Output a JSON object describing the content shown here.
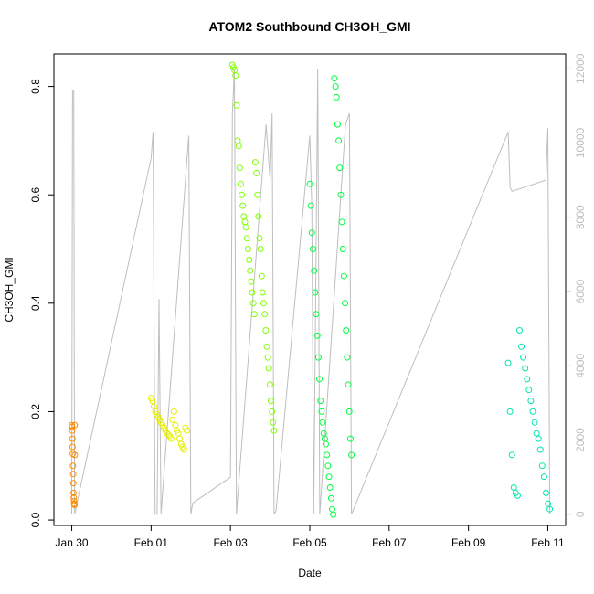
{
  "chart_data": {
    "type": "scatter",
    "title": "ATOM2 Southbound CH3OH_GMI",
    "xlabel": "Date",
    "ylabel": "CH3OH_GMI",
    "x_unit": "days since 2017-01-27",
    "xlim": [
      2.55,
      15.45
    ],
    "ylim": [
      -0.01,
      0.86
    ],
    "y2lim": [
      -300,
      12400
    ],
    "y2_color": "#bebebe",
    "x_ticks": [
      {
        "x": 3,
        "label": "Jan 30"
      },
      {
        "x": 5,
        "label": "Feb 01"
      },
      {
        "x": 7,
        "label": "Feb 03"
      },
      {
        "x": 9,
        "label": "Feb 05"
      },
      {
        "x": 11,
        "label": "Feb 07"
      },
      {
        "x": 13,
        "label": "Feb 09"
      },
      {
        "x": 15,
        "label": "Feb 11"
      }
    ],
    "y_ticks": [
      0.0,
      0.2,
      0.4,
      0.6,
      0.8
    ],
    "y_tick_labels": [
      "0.0",
      "0.2",
      "0.4",
      "0.6",
      "0.8"
    ],
    "y2_ticks": [
      0,
      2000,
      4000,
      6000,
      8000,
      10000,
      12000
    ],
    "y2_tick_labels": [
      "0",
      "2000",
      "4000",
      "6000",
      "8000",
      "10000",
      "12000"
    ],
    "grid": false,
    "legend": "none",
    "series": [
      {
        "color": "#ff8c00",
        "x_range": [
          3.0,
          3.08
        ],
        "values": [
          0.175,
          0.172,
          0.165,
          0.15,
          0.135,
          0.122,
          0.1,
          0.085,
          0.068,
          0.05,
          0.042,
          0.035,
          0.03,
          0.03,
          0.028,
          0.175,
          0.12
        ]
      },
      {
        "color": "#e6f000",
        "x_range": [
          5.0,
          5.9
        ],
        "values": [
          0.225,
          0.22,
          0.21,
          0.2,
          0.195,
          0.19,
          0.185,
          0.18,
          0.175,
          0.17,
          0.165,
          0.16,
          0.158,
          0.155,
          0.15,
          0.185,
          0.2,
          0.175,
          0.165,
          0.16,
          0.15,
          0.14,
          0.135,
          0.13,
          0.17,
          0.165
        ]
      },
      {
        "color": "#80ff00",
        "x_range": [
          7.05,
          8.1
        ],
        "values": [
          0.84,
          0.835,
          0.83,
          0.82,
          0.765,
          0.7,
          0.69,
          0.65,
          0.62,
          0.6,
          0.58,
          0.56,
          0.55,
          0.54,
          0.52,
          0.5,
          0.48,
          0.46,
          0.44,
          0.42,
          0.4,
          0.38,
          0.66,
          0.64,
          0.6,
          0.56,
          0.52,
          0.5,
          0.45,
          0.42,
          0.4,
          0.38,
          0.35,
          0.32,
          0.3,
          0.28,
          0.25,
          0.22,
          0.2,
          0.18,
          0.165
        ]
      },
      {
        "color": "#00ff40",
        "x_range": [
          9.0,
          10.05
        ],
        "values": [
          0.62,
          0.58,
          0.53,
          0.5,
          0.46,
          0.42,
          0.38,
          0.34,
          0.3,
          0.26,
          0.22,
          0.2,
          0.18,
          0.16,
          0.15,
          0.14,
          0.12,
          0.1,
          0.08,
          0.06,
          0.04,
          0.02,
          0.01,
          0.815,
          0.8,
          0.78,
          0.73,
          0.7,
          0.65,
          0.6,
          0.55,
          0.5,
          0.45,
          0.4,
          0.35,
          0.3,
          0.25,
          0.2,
          0.15,
          0.12
        ]
      },
      {
        "color": "#00e6b0",
        "x_range": [
          14.0,
          15.05
        ],
        "values": [
          0.29,
          0.2,
          0.12,
          0.06,
          0.05,
          0.045,
          0.35,
          0.32,
          0.3,
          0.28,
          0.26,
          0.24,
          0.22,
          0.2,
          0.18,
          0.16,
          0.15,
          0.13,
          0.1,
          0.08,
          0.05,
          0.03,
          0.02
        ]
      }
    ],
    "secondary_line": {
      "color": "#bebebe",
      "points": [
        [
          3.0,
          0
        ],
        [
          3.02,
          11400
        ],
        [
          3.05,
          11400
        ],
        [
          3.07,
          0
        ],
        [
          5.0,
          9600
        ],
        [
          5.05,
          10300
        ],
        [
          5.1,
          0
        ],
        [
          5.15,
          0
        ],
        [
          5.2,
          5800
        ],
        [
          5.25,
          0
        ],
        [
          5.9,
          9500
        ],
        [
          5.95,
          10200
        ],
        [
          6.0,
          0
        ],
        [
          6.05,
          300
        ],
        [
          7.0,
          1000
        ],
        [
          7.05,
          10800
        ],
        [
          7.1,
          12000
        ],
        [
          7.15,
          0
        ],
        [
          7.9,
          10500
        ],
        [
          8.0,
          9000
        ],
        [
          8.05,
          10800
        ],
        [
          8.1,
          0
        ],
        [
          8.15,
          100
        ],
        [
          9.0,
          10200
        ],
        [
          9.05,
          8300
        ],
        [
          9.1,
          0
        ],
        [
          9.2,
          12000
        ],
        [
          9.25,
          0
        ],
        [
          9.9,
          10500
        ],
        [
          10.0,
          10800
        ],
        [
          10.05,
          0
        ],
        [
          14.0,
          10300
        ],
        [
          14.05,
          8800
        ],
        [
          14.1,
          8700
        ],
        [
          14.95,
          9000
        ],
        [
          15.0,
          10400
        ],
        [
          15.05,
          0
        ]
      ]
    }
  }
}
